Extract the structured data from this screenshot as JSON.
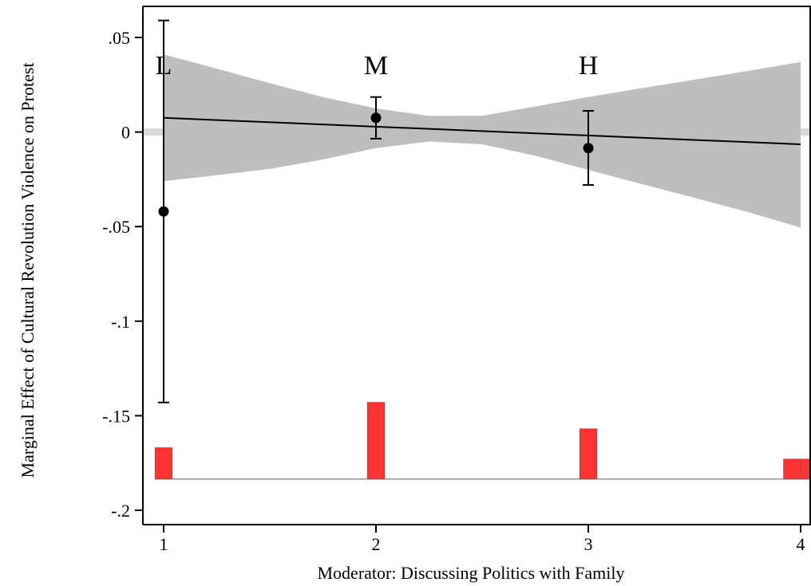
{
  "chart_data": {
    "type": "line",
    "xlabel": "Moderator: Discussing Politics with Family",
    "ylabel": "Marginal Effect of Cultural Revolution Violence on Protest",
    "xlim": [
      0.9,
      4.05
    ],
    "ylim": [
      -0.208,
      0.066
    ],
    "x_ticks": [
      {
        "value": 1,
        "label": "1"
      },
      {
        "value": 2,
        "label": "2"
      },
      {
        "value": 3,
        "label": "3"
      },
      {
        "value": 4,
        "label": "4"
      }
    ],
    "y_ticks": [
      {
        "value": 0.05,
        "label": ".05"
      },
      {
        "value": 0,
        "label": "0"
      },
      {
        "value": -0.05,
        "label": "-.05"
      },
      {
        "value": -0.1,
        "label": "-.1"
      },
      {
        "value": -0.15,
        "label": "-.15"
      },
      {
        "value": -0.2,
        "label": "-.2"
      }
    ],
    "reference_line_y": 0,
    "marginal_effect_line": {
      "x": [
        1,
        4
      ],
      "y": [
        0.0075,
        -0.0065
      ]
    },
    "confidence_band": {
      "x": [
        1,
        1.25,
        1.5,
        1.75,
        2,
        2.25,
        2.5,
        2.75,
        3,
        3.25,
        3.5,
        3.75,
        4
      ],
      "upper": [
        0.041,
        0.0335,
        0.0258,
        0.0185,
        0.0125,
        0.0085,
        0.0086,
        0.0135,
        0.0185,
        0.0232,
        0.0277,
        0.0323,
        0.037
      ],
      "lower": [
        -0.026,
        -0.0228,
        -0.0195,
        -0.0145,
        -0.0085,
        -0.005,
        -0.0065,
        -0.0125,
        -0.02,
        -0.0275,
        -0.0348,
        -0.0423,
        -0.0505
      ]
    },
    "binned_estimates": [
      {
        "label": "L",
        "x": 1,
        "y": -0.042,
        "ci_low": -0.143,
        "ci_high": 0.059
      },
      {
        "label": "M",
        "x": 2,
        "y": 0.0075,
        "ci_low": -0.0035,
        "ci_high": 0.0185
      },
      {
        "label": "H",
        "x": 3,
        "y": -0.0085,
        "ci_low": -0.028,
        "ci_high": 0.0112
      }
    ],
    "histogram": {
      "baseline": -0.1835,
      "bars": [
        {
          "x0": 0.96,
          "x1": 1.04,
          "top": -0.167
        },
        {
          "x0": 1.96,
          "x1": 2.04,
          "top": -0.143
        },
        {
          "x0": 2.96,
          "x1": 3.04,
          "top": -0.157
        },
        {
          "x0": 3.92,
          "x1": 4.0,
          "top": -0.173
        },
        {
          "x0": 4.0,
          "x1": 4.07,
          "top": -0.173
        }
      ]
    },
    "colors": {
      "band": "#bebebe",
      "reference_line": "#d9d9d9",
      "line": "#000000",
      "histogram_fill": "#ff3333",
      "histogram_stroke": "#9c4a4a",
      "histogram_baseline": "#7f7f7f"
    }
  }
}
